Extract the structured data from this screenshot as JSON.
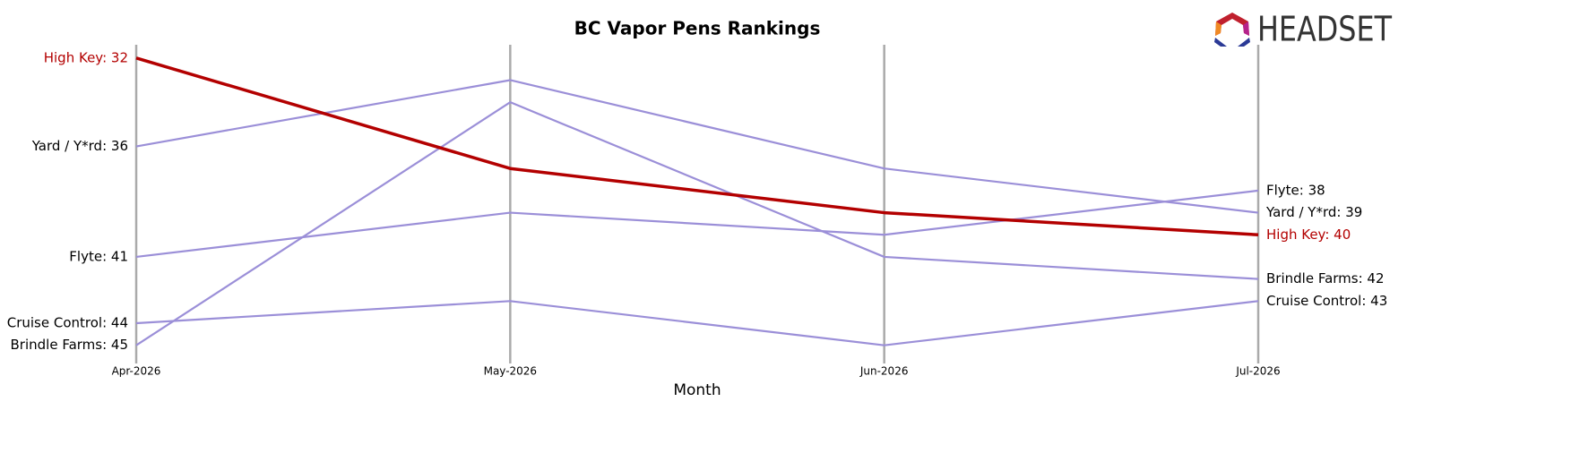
{
  "chart_data": {
    "type": "bump",
    "title": "BC Vapor Pens Rankings",
    "x_label": "Month",
    "logo": "HEADSET",
    "categories": [
      "Apr-2026",
      "May-2026",
      "Jun-2026",
      "Jul-2026"
    ],
    "ylim": [
      45.5,
      31.4
    ],
    "series": [
      {
        "name": "Yard / Y*rd",
        "color": "#9b8fd8",
        "label_color": "#000000",
        "values": [
          36,
          33,
          37,
          39
        ],
        "value_labels": [
          "Yard / Y*rd: 36",
          null,
          null,
          "Yard / Y*rd: 39"
        ]
      },
      {
        "name": "Flyte",
        "color": "#9b8fd8",
        "label_color": "#000000",
        "values": [
          41,
          39,
          40,
          38
        ],
        "value_labels": [
          "Flyte: 41",
          null,
          null,
          "Flyte: 38"
        ]
      },
      {
        "name": "Cruise Control",
        "color": "#9b8fd8",
        "label_color": "#000000",
        "values": [
          44,
          43,
          45,
          43
        ],
        "value_labels": [
          "Cruise Control: 44",
          null,
          null,
          "Cruise Control: 43"
        ]
      },
      {
        "name": "Brindle Farms",
        "color": "#9b8fd8",
        "label_color": "#000000",
        "values": [
          45,
          34,
          41,
          42
        ],
        "value_labels": [
          "Brindle Farms: 45",
          null,
          null,
          "Brindle Farms: 42"
        ]
      },
      {
        "name": "High Key",
        "color": "#b30000",
        "label_color": "#b30000",
        "values": [
          32,
          37,
          39,
          40
        ],
        "value_labels": [
          "High Key: 32",
          null,
          null,
          "High Key: 40"
        ],
        "width": 3.5
      }
    ]
  }
}
